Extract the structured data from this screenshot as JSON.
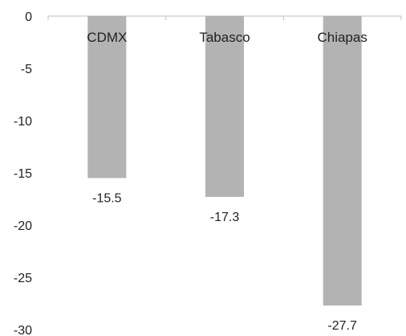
{
  "chart_data": {
    "type": "bar",
    "categories": [
      "CDMX",
      "Tabasco",
      "Chiapas"
    ],
    "values": [
      -15.5,
      -17.3,
      -27.7
    ],
    "data_labels": [
      "-15.5",
      "-17.3",
      "-27.7"
    ],
    "title": "",
    "xlabel": "",
    "ylabel": "",
    "ylim": [
      -30,
      0
    ],
    "yticks": [
      0,
      -5,
      -10,
      -15,
      -20,
      -25,
      -30
    ],
    "grid": false,
    "legend": "none",
    "colors": {
      "bar": "#b3b3b3",
      "axis": "#bfbfbf",
      "text": "#222222"
    }
  }
}
